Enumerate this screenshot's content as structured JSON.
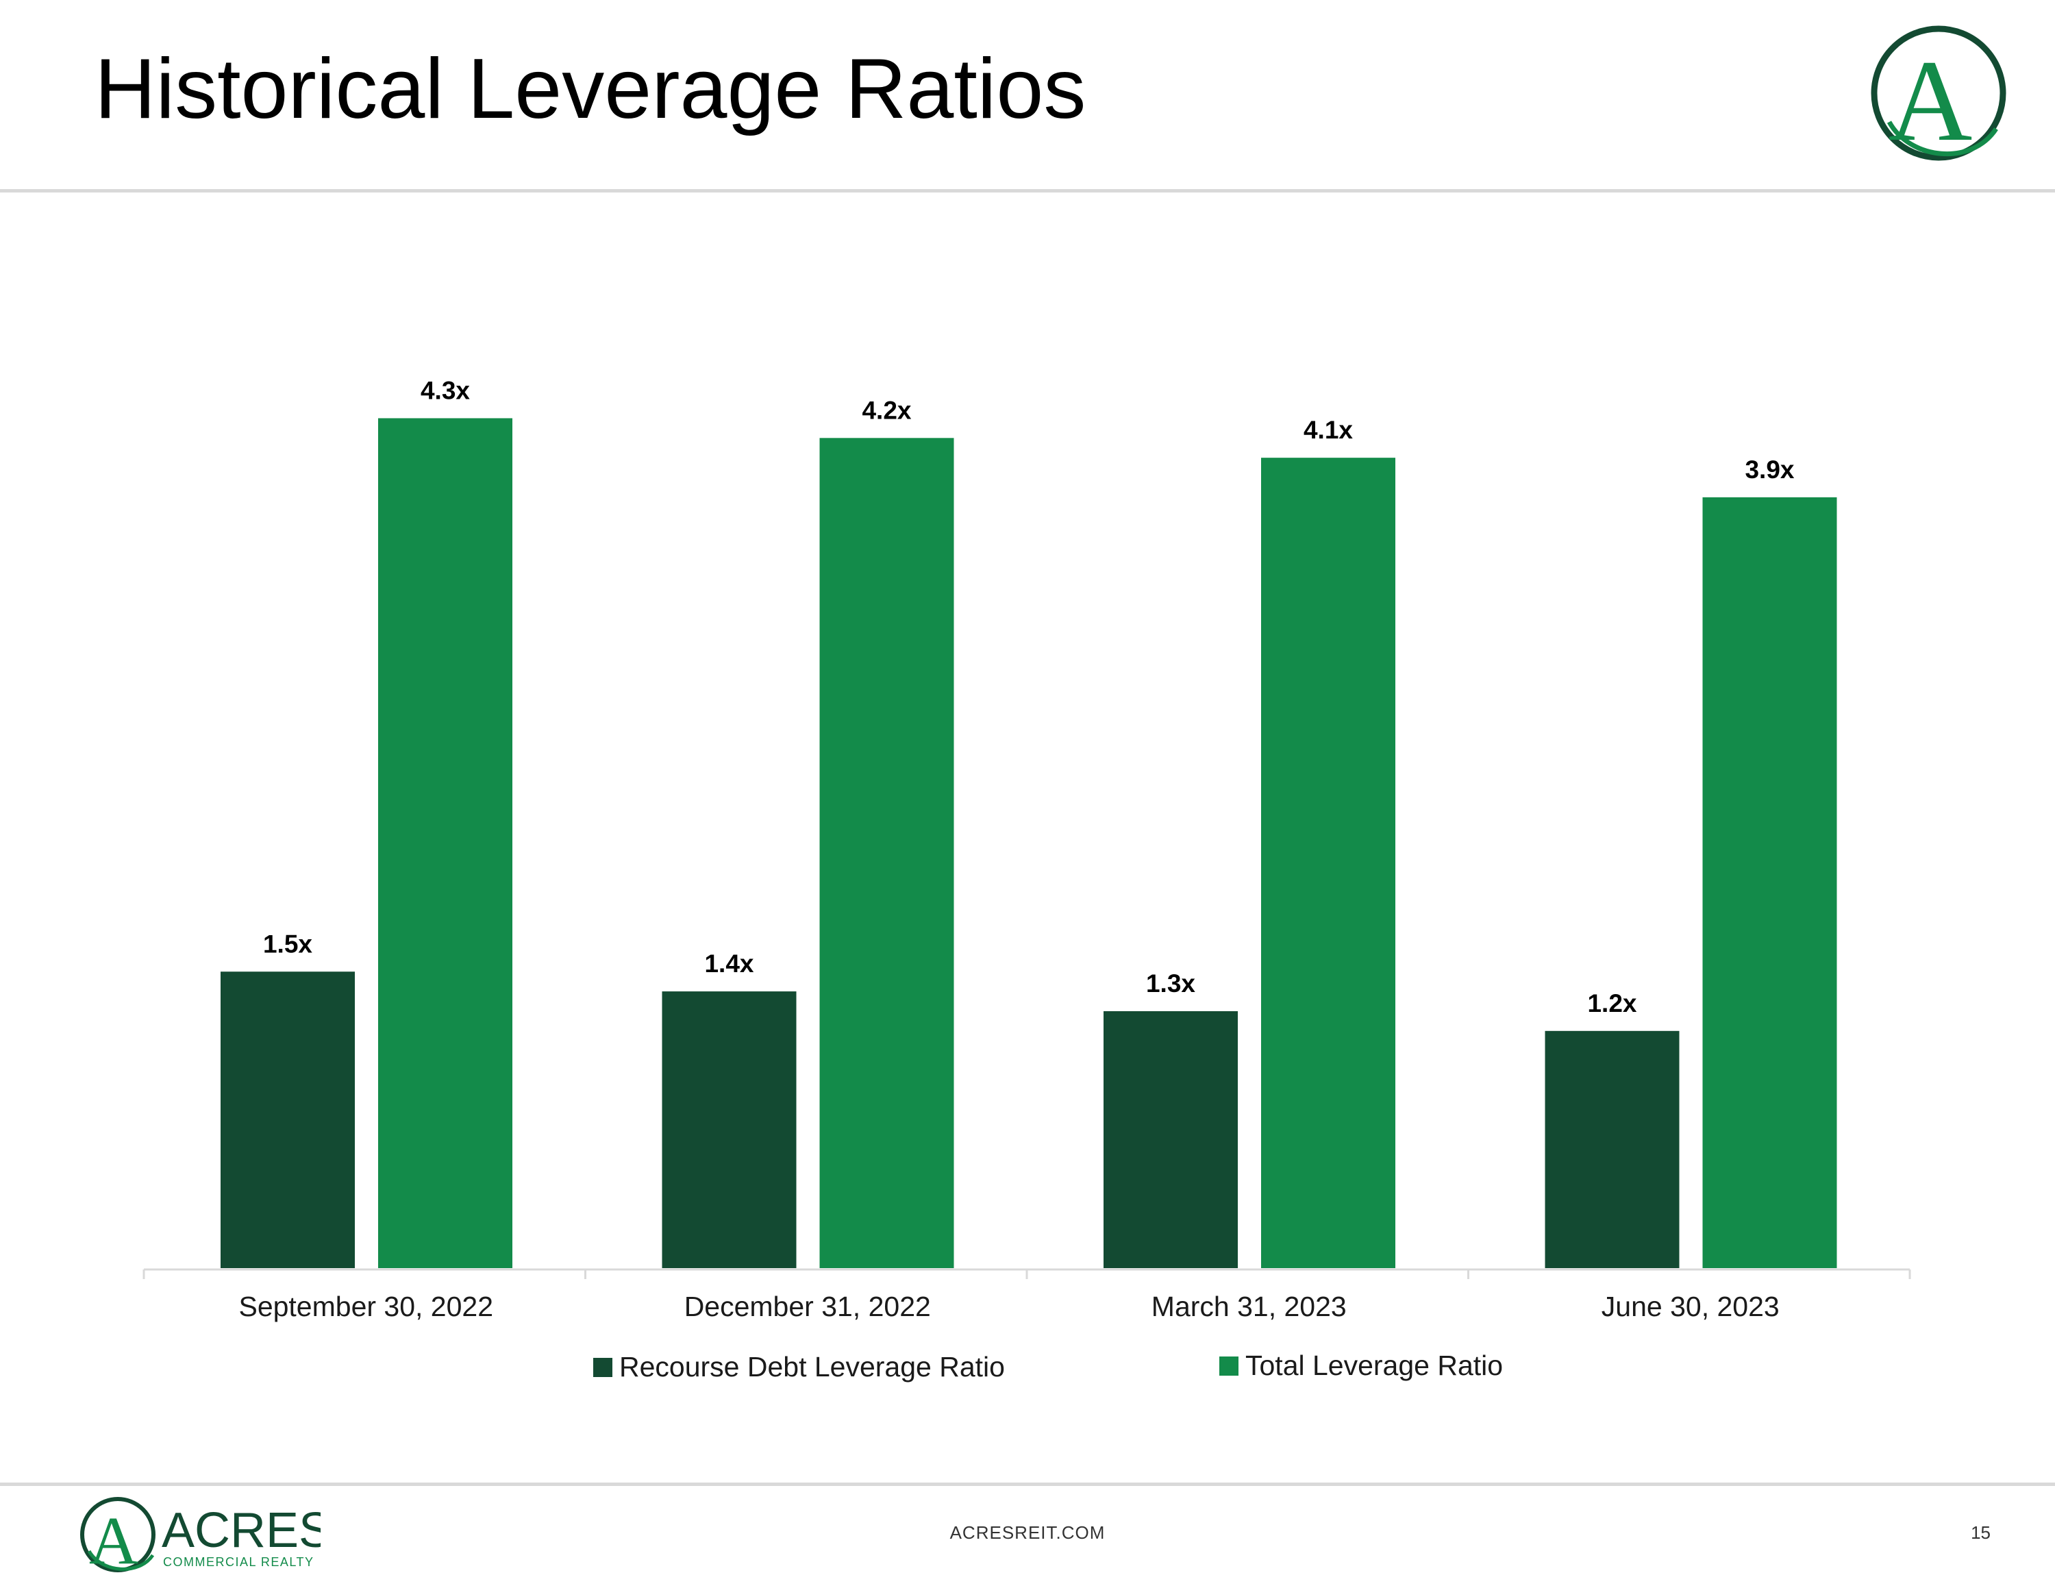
{
  "slide": {
    "title": "Historical Leverage Ratios",
    "footer_url": "ACRESREIT.COM",
    "page_number": "15",
    "logo_letter": "A",
    "brand_name": "ACRES",
    "brand_tagline": "COMMERCIAL REALTY"
  },
  "colors": {
    "dark_green": "#134a32",
    "green": "#138b4a",
    "axis": "#d9d9d9",
    "text": "#000000"
  },
  "chart_data": {
    "type": "bar",
    "title": "",
    "xlabel": "",
    "ylabel": "",
    "ylim": [
      0,
      4.4
    ],
    "grid": false,
    "legend_position": "bottom",
    "categories": [
      "September 30, 2022",
      "December 31, 2022",
      "March 31, 2023",
      "June 30, 2023"
    ],
    "series": [
      {
        "name": "Recourse Debt Leverage Ratio",
        "values": [
          1.5,
          1.4,
          1.3,
          1.2
        ],
        "labels": [
          "1.5x",
          "1.4x",
          "1.3x",
          "1.2x"
        ],
        "color": "#134a32"
      },
      {
        "name": "Total Leverage Ratio",
        "values": [
          4.3,
          4.2,
          4.1,
          3.9
        ],
        "labels": [
          "4.3x",
          "4.2x",
          "4.1x",
          "3.9x"
        ],
        "color": "#138b4a"
      }
    ]
  }
}
